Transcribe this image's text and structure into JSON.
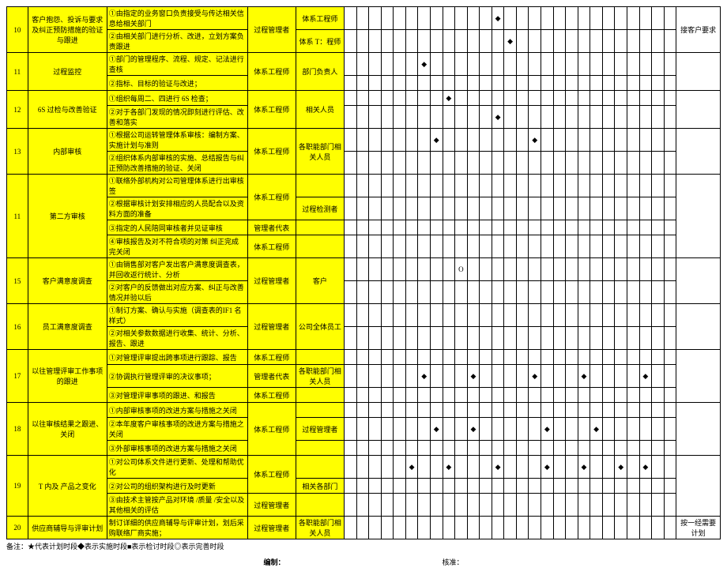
{
  "rows": [
    {
      "no": "10",
      "title": "客户抱怨、投诉与要求及纠正预防措施的验证与跟进",
      "items": [
        {
          "desc": "①由指定的业务窗口负责接受与传达相关信息给相关部门",
          "r1": "过程管理者",
          "r2": "体系工程师",
          "marks": [
            12
          ]
        },
        {
          "desc": "②由相关部门进行分析、改进，立划方案负责跟进",
          "r1": "过程管理者",
          "r2": "体系 T：程师",
          "marks": [
            13
          ]
        }
      ],
      "side": "接客户要求"
    },
    {
      "no": "11",
      "title": "过程监控",
      "items": [
        {
          "desc": "①部门的管理程序、流程、规定、记法进行查核",
          "r1": "体系工程师",
          "r2": "部门负责人",
          "marks": [
            6
          ]
        },
        {
          "desc": "②指标、目标的验证与改进；",
          "r1": "体系工程师",
          "r2": "部门负责人",
          "marks": []
        }
      ]
    },
    {
      "no": "12",
      "title": "6S 过检与改善验证",
      "items": [
        {
          "desc": "①组织每周二、四进行 6S 检查；",
          "r1": "体系工程师",
          "r2": "相关人员",
          "marks": [
            8
          ]
        },
        {
          "desc": "②对于各部门发现的情况即刻进行评估、改善和落实",
          "r1": "体系工程师",
          "r2": "相关人员",
          "marks": [
            12
          ]
        }
      ]
    },
    {
      "no": "13",
      "title": "内部审核",
      "items": [
        {
          "desc": "①根据公司运转管理体系审核：编制方案、实施计划与准则",
          "r1": "体系工程师",
          "r2": "各职能部门相关人员",
          "marks": [
            7,
            15
          ]
        },
        {
          "desc": "②组织体系内部审核的实施、总结报告与纠正预防改善措施的验证、关闭",
          "r1": "体系工程师",
          "r2": "各职能部门相关人员",
          "marks": []
        }
      ]
    },
    {
      "no": "11",
      "title": "第二方审核",
      "items": [
        {
          "desc": "①联络外部机构对公司管理体系进行出审核签",
          "r1": "体系工程师",
          "r2": "",
          "marks": []
        },
        {
          "desc": "②根据审核计划安排相应的人员配合以及资料方面的准备",
          "r1": "体系工程师",
          "r2": "过程检测者",
          "marks": []
        },
        {
          "desc": "③指定的人民陪同审核者并见证审核",
          "r1": "管理者代表",
          "r2": "",
          "marks": []
        },
        {
          "desc": "④审核报告及对不符合项的对策 纠正完成完关闭",
          "r1": "体系工程师",
          "r2": "",
          "marks": []
        }
      ]
    },
    {
      "no": "15",
      "title": "客户满意度调查",
      "items": [
        {
          "desc": "①由销售部对客户发出客户满意度调查表，并回收返行统计、分析",
          "r1": "过程管理者",
          "r2": "客户",
          "marks": [],
          "o": 9
        },
        {
          "desc": "②对客户的反馈做出对应方案、纠正与改善情况并验以后",
          "r1": "过程管理者",
          "r2": "客户",
          "marks": []
        }
      ]
    },
    {
      "no": "16",
      "title": "员工满意度调查",
      "items": [
        {
          "desc": "①制订方案、确认与实施（调查表的IF1 名样式）",
          "r1": "过程管理者",
          "r2": "公司全体员工",
          "marks": []
        },
        {
          "desc": "②对相关参数数据进行收集、统计、分析、报告、跟进",
          "r1": "过程管理者",
          "r2": "公司全体员工",
          "marks": []
        }
      ]
    },
    {
      "no": "17",
      "title": "以往管理评审工作事项的跟进",
      "items": [
        {
          "desc": "①对管理评审提出跨事项进行跟踪、报告",
          "r1": "体系工程师",
          "r2": "",
          "marks": []
        },
        {
          "desc": "②协调执行管理评审的决议事项；",
          "r1": "管理者代表",
          "r2": "各职能部门相关人员",
          "marks": [
            6,
            10,
            15,
            19,
            24
          ]
        },
        {
          "desc": "③对管理评审事项的跟进、和报告",
          "r1": "体系工程师",
          "r2": "",
          "marks": []
        }
      ]
    },
    {
      "no": "18",
      "title": "以往审核结果之跟进、关闭",
      "items": [
        {
          "desc": "①内部审核事项的改进方案与措施之关闭",
          "r1": "体系工程师",
          "r2": "",
          "marks": []
        },
        {
          "desc": "②本年度客户审核事项的改进方案与措施之关闭",
          "r1": "体系工程师",
          "r2": "过程管理者",
          "marks": [
            7,
            10,
            16,
            20
          ]
        },
        {
          "desc": "③外部审核事项的改进方案与措施之关闭",
          "r1": "体系工程师",
          "r2": "",
          "marks": []
        }
      ]
    },
    {
      "no": "19",
      "title": "T 内及 产品之变化",
      "items": [
        {
          "desc": "①对公司体系文件进行更新、处理和帮助优化",
          "r1": "体系工程师",
          "r2": "",
          "marks": [
            5,
            8,
            12,
            16,
            19,
            22,
            24
          ]
        },
        {
          "desc": "②对公司的组织架构进行及时更新",
          "r1": "体系工程师",
          "r2": "相关各部门",
          "marks": []
        },
        {
          "desc": "③由技术主管按产品对环境 /质量 /安全以及其他相关的评估",
          "r1": "过程管理者",
          "r2": "",
          "marks": []
        }
      ]
    },
    {
      "no": "20",
      "title": "供应商辅导与评审计划",
      "items": [
        {
          "desc": "制订详细的供应商辅导与评审计划，划后采购联络厂商实施；",
          "r1": "过程管理者",
          "r2": "各职能部门相关人员",
          "marks": []
        }
      ],
      "side": "按一经需要计划"
    }
  ],
  "footnote": "备注：★代表计划时段◆表示实施时段■表示检讨时段◎表示完善时段",
  "sig1": "编制：",
  "sig2": "核准：",
  "gridCols": 27
}
